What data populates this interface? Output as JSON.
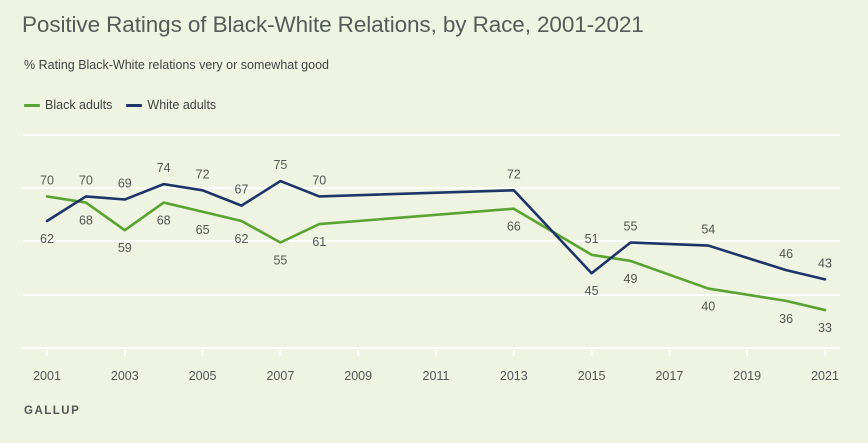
{
  "header": {
    "title": "Positive Ratings of Black-White Relations, by Race, 2001-2021",
    "subtitle": "% Rating Black-White relations very or somewhat good"
  },
  "source": "GALLUP",
  "colors": {
    "black_adults": "#5aa232",
    "white_adults": "#1d3468",
    "grid": "#ffffff",
    "background": "#eef3e2"
  },
  "chart_data": {
    "type": "line",
    "title": "Positive Ratings of Black-White Relations, by Race, 2001-2021",
    "subtitle": "% Rating Black-White relations very or somewhat good",
    "xlabel": "",
    "ylabel": "",
    "xlim": [
      2001,
      2021
    ],
    "ylim": [
      20,
      90
    ],
    "x_ticks": [
      2001,
      2003,
      2005,
      2007,
      2009,
      2011,
      2013,
      2015,
      2017,
      2019,
      2021
    ],
    "grid": true,
    "legend_position": "top-left",
    "series": [
      {
        "name": "Black adults",
        "color": "#5aa232",
        "x": [
          2001,
          2002,
          2003,
          2004,
          2005,
          2006,
          2007,
          2008,
          2013,
          2015,
          2016,
          2018,
          2020,
          2021
        ],
        "values": [
          70,
          68,
          59,
          68,
          65,
          62,
          55,
          61,
          66,
          51,
          49,
          40,
          36,
          33
        ],
        "labels": [
          null,
          "68",
          "59",
          "68",
          "65",
          "62",
          "55",
          "61",
          "66",
          "51",
          "49",
          "40",
          "36",
          "33"
        ]
      },
      {
        "name": "White adults",
        "color": "#1d3468",
        "x": [
          2001,
          2002,
          2003,
          2004,
          2005,
          2006,
          2007,
          2008,
          2013,
          2015,
          2016,
          2018,
          2020,
          2021
        ],
        "values": [
          62,
          70,
          69,
          74,
          72,
          67,
          75,
          70,
          72,
          45,
          55,
          54,
          46,
          43
        ],
        "labels": [
          "62",
          "70",
          "69",
          "74",
          "72",
          "67",
          "75",
          "70",
          "72",
          "45",
          "55",
          "54",
          "46",
          "43"
        ]
      }
    ],
    "point_labels": [
      {
        "text": "70"
      },
      {
        "text": "62"
      },
      {
        "text": "70"
      },
      {
        "text": "68"
      },
      {
        "text": "69"
      },
      {
        "text": "59"
      },
      {
        "text": "74"
      },
      {
        "text": "68"
      },
      {
        "text": "72"
      },
      {
        "text": "65"
      },
      {
        "text": "67"
      },
      {
        "text": "62"
      },
      {
        "text": "75"
      },
      {
        "text": "55"
      },
      {
        "text": "70"
      },
      {
        "text": "61"
      },
      {
        "text": "72"
      },
      {
        "text": "66"
      },
      {
        "text": "51"
      },
      {
        "text": "45"
      },
      {
        "text": "55"
      },
      {
        "text": "49"
      },
      {
        "text": "54"
      },
      {
        "text": "40"
      },
      {
        "text": "46"
      },
      {
        "text": "36"
      },
      {
        "text": "43"
      },
      {
        "text": "33"
      }
    ]
  }
}
